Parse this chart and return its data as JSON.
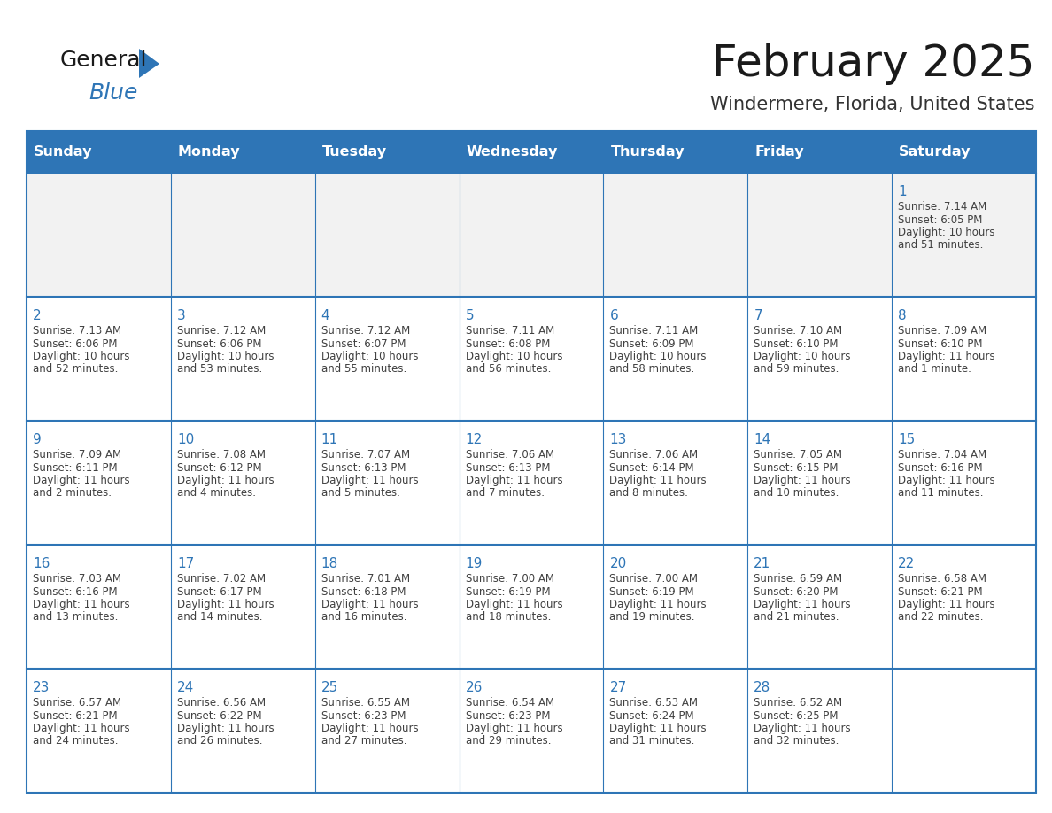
{
  "title": "February 2025",
  "subtitle": "Windermere, Florida, United States",
  "header_bg": "#2E75B6",
  "header_text": "#FFFFFF",
  "cell_bg_odd": "#F2F2F2",
  "cell_bg_even": "#FFFFFF",
  "border_color": "#2E75B6",
  "title_color": "#1a1a1a",
  "subtitle_color": "#333333",
  "day_number_color": "#2E75B6",
  "cell_text_color": "#404040",
  "days_of_week": [
    "Sunday",
    "Monday",
    "Tuesday",
    "Wednesday",
    "Thursday",
    "Friday",
    "Saturday"
  ],
  "weeks": [
    [
      null,
      null,
      null,
      null,
      null,
      null,
      1
    ],
    [
      2,
      3,
      4,
      5,
      6,
      7,
      8
    ],
    [
      9,
      10,
      11,
      12,
      13,
      14,
      15
    ],
    [
      16,
      17,
      18,
      19,
      20,
      21,
      22
    ],
    [
      23,
      24,
      25,
      26,
      27,
      28,
      null
    ]
  ],
  "cell_data": {
    "1": {
      "sunrise": "7:14 AM",
      "sunset": "6:05 PM",
      "daylight_l1": "Daylight: 10 hours",
      "daylight_l2": "and 51 minutes."
    },
    "2": {
      "sunrise": "7:13 AM",
      "sunset": "6:06 PM",
      "daylight_l1": "Daylight: 10 hours",
      "daylight_l2": "and 52 minutes."
    },
    "3": {
      "sunrise": "7:12 AM",
      "sunset": "6:06 PM",
      "daylight_l1": "Daylight: 10 hours",
      "daylight_l2": "and 53 minutes."
    },
    "4": {
      "sunrise": "7:12 AM",
      "sunset": "6:07 PM",
      "daylight_l1": "Daylight: 10 hours",
      "daylight_l2": "and 55 minutes."
    },
    "5": {
      "sunrise": "7:11 AM",
      "sunset": "6:08 PM",
      "daylight_l1": "Daylight: 10 hours",
      "daylight_l2": "and 56 minutes."
    },
    "6": {
      "sunrise": "7:11 AM",
      "sunset": "6:09 PM",
      "daylight_l1": "Daylight: 10 hours",
      "daylight_l2": "and 58 minutes."
    },
    "7": {
      "sunrise": "7:10 AM",
      "sunset": "6:10 PM",
      "daylight_l1": "Daylight: 10 hours",
      "daylight_l2": "and 59 minutes."
    },
    "8": {
      "sunrise": "7:09 AM",
      "sunset": "6:10 PM",
      "daylight_l1": "Daylight: 11 hours",
      "daylight_l2": "and 1 minute."
    },
    "9": {
      "sunrise": "7:09 AM",
      "sunset": "6:11 PM",
      "daylight_l1": "Daylight: 11 hours",
      "daylight_l2": "and 2 minutes."
    },
    "10": {
      "sunrise": "7:08 AM",
      "sunset": "6:12 PM",
      "daylight_l1": "Daylight: 11 hours",
      "daylight_l2": "and 4 minutes."
    },
    "11": {
      "sunrise": "7:07 AM",
      "sunset": "6:13 PM",
      "daylight_l1": "Daylight: 11 hours",
      "daylight_l2": "and 5 minutes."
    },
    "12": {
      "sunrise": "7:06 AM",
      "sunset": "6:13 PM",
      "daylight_l1": "Daylight: 11 hours",
      "daylight_l2": "and 7 minutes."
    },
    "13": {
      "sunrise": "7:06 AM",
      "sunset": "6:14 PM",
      "daylight_l1": "Daylight: 11 hours",
      "daylight_l2": "and 8 minutes."
    },
    "14": {
      "sunrise": "7:05 AM",
      "sunset": "6:15 PM",
      "daylight_l1": "Daylight: 11 hours",
      "daylight_l2": "and 10 minutes."
    },
    "15": {
      "sunrise": "7:04 AM",
      "sunset": "6:16 PM",
      "daylight_l1": "Daylight: 11 hours",
      "daylight_l2": "and 11 minutes."
    },
    "16": {
      "sunrise": "7:03 AM",
      "sunset": "6:16 PM",
      "daylight_l1": "Daylight: 11 hours",
      "daylight_l2": "and 13 minutes."
    },
    "17": {
      "sunrise": "7:02 AM",
      "sunset": "6:17 PM",
      "daylight_l1": "Daylight: 11 hours",
      "daylight_l2": "and 14 minutes."
    },
    "18": {
      "sunrise": "7:01 AM",
      "sunset": "6:18 PM",
      "daylight_l1": "Daylight: 11 hours",
      "daylight_l2": "and 16 minutes."
    },
    "19": {
      "sunrise": "7:00 AM",
      "sunset": "6:19 PM",
      "daylight_l1": "Daylight: 11 hours",
      "daylight_l2": "and 18 minutes."
    },
    "20": {
      "sunrise": "7:00 AM",
      "sunset": "6:19 PM",
      "daylight_l1": "Daylight: 11 hours",
      "daylight_l2": "and 19 minutes."
    },
    "21": {
      "sunrise": "6:59 AM",
      "sunset": "6:20 PM",
      "daylight_l1": "Daylight: 11 hours",
      "daylight_l2": "and 21 minutes."
    },
    "22": {
      "sunrise": "6:58 AM",
      "sunset": "6:21 PM",
      "daylight_l1": "Daylight: 11 hours",
      "daylight_l2": "and 22 minutes."
    },
    "23": {
      "sunrise": "6:57 AM",
      "sunset": "6:21 PM",
      "daylight_l1": "Daylight: 11 hours",
      "daylight_l2": "and 24 minutes."
    },
    "24": {
      "sunrise": "6:56 AM",
      "sunset": "6:22 PM",
      "daylight_l1": "Daylight: 11 hours",
      "daylight_l2": "and 26 minutes."
    },
    "25": {
      "sunrise": "6:55 AM",
      "sunset": "6:23 PM",
      "daylight_l1": "Daylight: 11 hours",
      "daylight_l2": "and 27 minutes."
    },
    "26": {
      "sunrise": "6:54 AM",
      "sunset": "6:23 PM",
      "daylight_l1": "Daylight: 11 hours",
      "daylight_l2": "and 29 minutes."
    },
    "27": {
      "sunrise": "6:53 AM",
      "sunset": "6:24 PM",
      "daylight_l1": "Daylight: 11 hours",
      "daylight_l2": "and 31 minutes."
    },
    "28": {
      "sunrise": "6:52 AM",
      "sunset": "6:25 PM",
      "daylight_l1": "Daylight: 11 hours",
      "daylight_l2": "and 32 minutes."
    }
  }
}
